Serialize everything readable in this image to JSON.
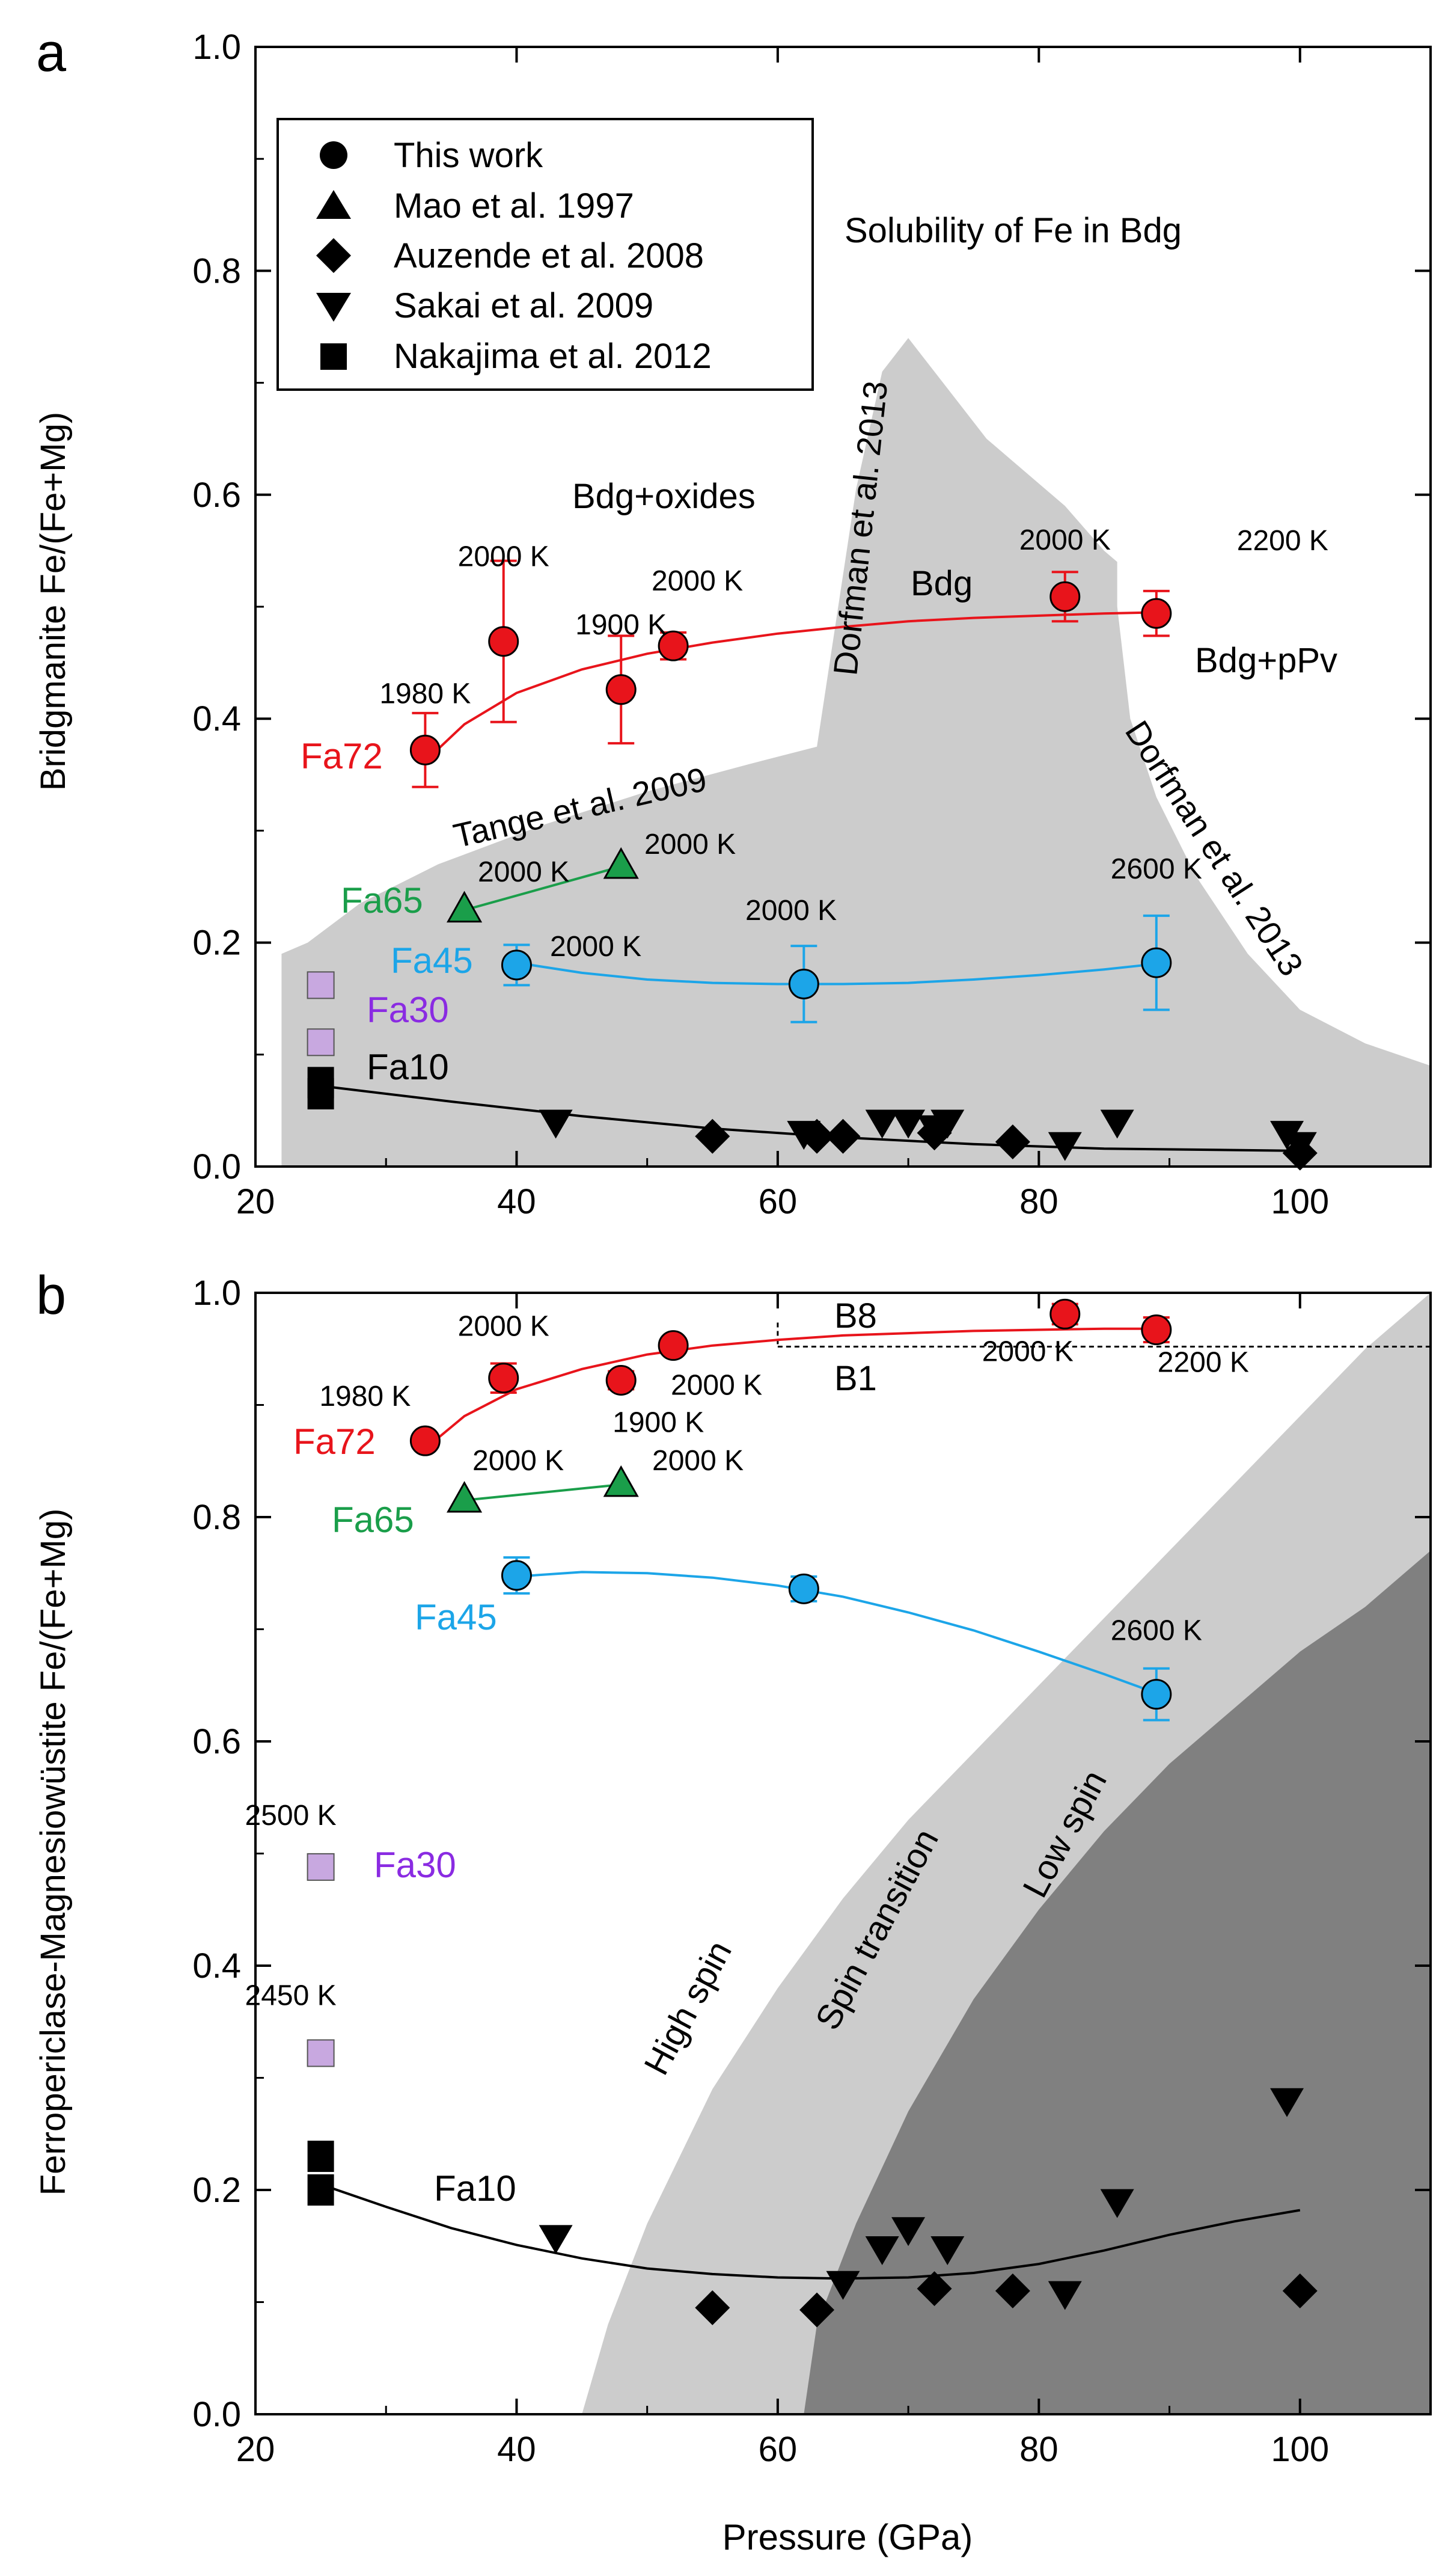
{
  "chart_data": [
    {
      "panel_label": "a",
      "type": "scatter",
      "xlabel": "",
      "ylabel": "Bridgmanite Fe/(Fe+Mg)",
      "xlim": [
        20,
        110
      ],
      "ylim": [
        0,
        1.0
      ],
      "xticks": [
        "20",
        "40",
        "60",
        "80",
        "100"
      ],
      "yticks": [
        "0.0",
        "0.2",
        "0.4",
        "0.6",
        "0.8",
        "1.0"
      ],
      "regions": [
        {
          "name": "Solubility of Fe in Bdg",
          "color": "#cccccc",
          "boundary": [
            [
              22,
              0
            ],
            [
              22,
              0.19
            ],
            [
              24,
              0.2
            ],
            [
              28,
              0.235
            ],
            [
              34,
              0.27
            ],
            [
              42,
              0.305
            ],
            [
              50,
              0.335
            ],
            [
              58,
              0.36
            ],
            [
              63,
              0.375
            ],
            [
              66,
              0.605
            ],
            [
              68,
              0.71
            ],
            [
              70,
              0.74
            ],
            [
              76,
              0.65
            ],
            [
              82,
              0.59
            ],
            [
              85,
              0.55
            ],
            [
              86,
              0.54
            ],
            [
              86,
              0.5
            ],
            [
              87,
              0.4
            ],
            [
              89,
              0.33
            ],
            [
              92,
              0.26
            ],
            [
              96,
              0.19
            ],
            [
              100,
              0.14
            ],
            [
              105,
              0.11
            ],
            [
              110,
              0.09
            ],
            [
              110,
              0
            ]
          ]
        }
      ],
      "legend": {
        "placement": "top-left",
        "entries": [
          {
            "marker": "circle",
            "label": "This work"
          },
          {
            "marker": "triangle-up",
            "label": "Mao et al. 1997"
          },
          {
            "marker": "diamond",
            "label": "Auzende et al. 2008"
          },
          {
            "marker": "triangle-down",
            "label": "Sakai et al. 2009"
          },
          {
            "marker": "square",
            "label": "Nakajima et al. 2012"
          }
        ]
      },
      "series": [
        {
          "name": "Fa72",
          "color": "#e8141b",
          "marker": "circle",
          "x": [
            33,
            39,
            48,
            52,
            82,
            89
          ],
          "y": [
            0.372,
            0.469,
            0.426,
            0.465,
            0.509,
            0.494
          ],
          "err": [
            0.033,
            0.072,
            0.048,
            0.012,
            0.022,
            0.02
          ],
          "temps": [
            "1980 K",
            "2000 K",
            "1900 K",
            "2000 K",
            "2000 K",
            "2200 K"
          ],
          "fit": [
            [
              33,
              0.362
            ],
            [
              36,
              0.395
            ],
            [
              40,
              0.423
            ],
            [
              45,
              0.444
            ],
            [
              50,
              0.458
            ],
            [
              55,
              0.468
            ],
            [
              60,
              0.476
            ],
            [
              65,
              0.482
            ],
            [
              70,
              0.487
            ],
            [
              75,
              0.49
            ],
            [
              80,
              0.492
            ],
            [
              85,
              0.494
            ],
            [
              89,
              0.495
            ]
          ]
        },
        {
          "name": "Fa65",
          "color": "#1a9e4a",
          "marker": "triangle-up",
          "x": [
            36,
            48
          ],
          "y": [
            0.229,
            0.268
          ],
          "temps": [
            "2000 K",
            "2000 K"
          ],
          "fit": [
            [
              36,
              0.229
            ],
            [
              48,
              0.268
            ]
          ]
        },
        {
          "name": "Fa45",
          "color": "#1ca5e8",
          "marker": "circle",
          "x": [
            40,
            62,
            89
          ],
          "y": [
            0.18,
            0.163,
            0.182
          ],
          "err": [
            0.018,
            0.034,
            0.042
          ],
          "temps": [
            "2000 K",
            "2000 K",
            "2600 K"
          ],
          "fit": [
            [
              40,
              0.182
            ],
            [
              45,
              0.173
            ],
            [
              50,
              0.167
            ],
            [
              55,
              0.164
            ],
            [
              60,
              0.163
            ],
            [
              65,
              0.163
            ],
            [
              70,
              0.164
            ],
            [
              75,
              0.167
            ],
            [
              80,
              0.171
            ],
            [
              85,
              0.176
            ],
            [
              89,
              0.181
            ]
          ]
        },
        {
          "name": "Fa30",
          "color": "#8a2be2",
          "marker": "square",
          "fill": "#c8a8e0",
          "x": [
            25,
            25
          ],
          "y": [
            0.162,
            0.111
          ]
        },
        {
          "name": "Fa10",
          "color": "#000000",
          "marker": "square",
          "x": [
            25,
            25
          ],
          "y": [
            0.075,
            0.065
          ],
          "fit": [
            [
              25,
              0.072
            ],
            [
              35,
              0.058
            ],
            [
              45,
              0.045
            ],
            [
              55,
              0.034
            ],
            [
              65,
              0.026
            ],
            [
              75,
              0.02
            ],
            [
              85,
              0.016
            ],
            [
              100,
              0.014
            ]
          ]
        },
        {
          "name": "Mao et al. 1997",
          "marker": "triangle-up",
          "x": [],
          "y": []
        },
        {
          "name": "Auzende et al. 2008",
          "marker": "diamond",
          "x": [
            55,
            63,
            65,
            72,
            78,
            100
          ],
          "y": [
            0.027,
            0.027,
            0.027,
            0.03,
            0.022,
            0.012
          ]
        },
        {
          "name": "Sakai et al. 2009",
          "marker": "triangle-down",
          "x": [
            43,
            62,
            68,
            70,
            72,
            73,
            82,
            86,
            99,
            100
          ],
          "y": [
            0.04,
            0.03,
            0.04,
            0.04,
            0.035,
            0.04,
            0.02,
            0.04,
            0.03,
            0.02
          ]
        }
      ],
      "annotations": [
        "Solubility of Fe in Bdg",
        "Bdg+oxides",
        "Bdg",
        "Bdg+pPv",
        "Tange et al. 2009",
        "Dorfman et al. 2013",
        "Dorfman et al. 2013",
        "2000 K",
        "2000 K",
        "2000 K",
        "2000 K"
      ]
    },
    {
      "panel_label": "b",
      "type": "scatter",
      "xlabel": "Pressure (GPa)",
      "ylabel": "Ferropericlase-Magnesiowüstite Fe/(Fe+Mg)",
      "xlim": [
        20,
        110
      ],
      "ylim": [
        0,
        1.0
      ],
      "xticks": [
        "20",
        "40",
        "60",
        "80",
        "100"
      ],
      "yticks": [
        "0.0",
        "0.2",
        "0.4",
        "0.6",
        "0.8",
        "1.0"
      ],
      "regions": [
        {
          "name": "Spin transition",
          "color": "#cccccc",
          "boundary": [
            [
              45,
              0
            ],
            [
              47,
              0.08
            ],
            [
              50,
              0.17
            ],
            [
              55,
              0.29
            ],
            [
              60,
              0.38
            ],
            [
              65,
              0.46
            ],
            [
              70,
              0.53
            ],
            [
              75,
              0.59
            ],
            [
              80,
              0.65
            ],
            [
              85,
              0.71
            ],
            [
              90,
              0.77
            ],
            [
              95,
              0.83
            ],
            [
              100,
              0.89
            ],
            [
              105,
              0.95
            ],
            [
              110,
              1.0
            ],
            [
              110,
              0
            ]
          ]
        },
        {
          "name": "Low spin",
          "color": "#808080",
          "boundary": [
            [
              62,
              0
            ],
            [
              63,
              0.08
            ],
            [
              66,
              0.17
            ],
            [
              70,
              0.27
            ],
            [
              75,
              0.37
            ],
            [
              80,
              0.45
            ],
            [
              85,
              0.52
            ],
            [
              90,
              0.58
            ],
            [
              95,
              0.63
            ],
            [
              100,
              0.68
            ],
            [
              105,
              0.72
            ],
            [
              110,
              0.77
            ],
            [
              110,
              0
            ]
          ]
        }
      ],
      "phase_boundary": {
        "y": 0.952,
        "x": [
          60,
          110
        ],
        "labels": [
          "B8",
          "B1"
        ]
      },
      "series": [
        {
          "name": "Fa72",
          "color": "#e8141b",
          "marker": "circle",
          "x": [
            33,
            39,
            48,
            52,
            82,
            89
          ],
          "y": [
            0.868,
            0.924,
            0.922,
            0.953,
            0.981,
            0.967
          ],
          "err": [
            0.005,
            0.013,
            0.008,
            0.006,
            0.009,
            0.011
          ],
          "temps": [
            "1980 K",
            "2000 K",
            "1900 K",
            "2000 K",
            "2000 K",
            "2200 K"
          ],
          "fit": [
            [
              33,
              0.861
            ],
            [
              36,
              0.89
            ],
            [
              40,
              0.914
            ],
            [
              45,
              0.932
            ],
            [
              50,
              0.945
            ],
            [
              55,
              0.953
            ],
            [
              60,
              0.958
            ],
            [
              65,
              0.962
            ],
            [
              70,
              0.964
            ],
            [
              75,
              0.966
            ],
            [
              80,
              0.967
            ],
            [
              85,
              0.968
            ],
            [
              89,
              0.968
            ]
          ]
        },
        {
          "name": "Fa65",
          "color": "#1a9e4a",
          "marker": "triangle-up",
          "x": [
            36,
            48
          ],
          "y": [
            0.815,
            0.829
          ],
          "temps": [
            "2000 K",
            "2000 K"
          ],
          "fit": [
            [
              36,
              0.815
            ],
            [
              48,
              0.829
            ]
          ]
        },
        {
          "name": "Fa45",
          "color": "#1ca5e8",
          "marker": "circle",
          "x": [
            40,
            62,
            89
          ],
          "y": [
            0.748,
            0.736,
            0.642
          ],
          "err": [
            0.016,
            0.011,
            0.023
          ],
          "temps": [
            "2000 K",
            "2000 K",
            "2600 K"
          ],
          "fit": [
            [
              40,
              0.747
            ],
            [
              45,
              0.751
            ],
            [
              50,
              0.75
            ],
            [
              55,
              0.746
            ],
            [
              60,
              0.739
            ],
            [
              65,
              0.729
            ],
            [
              70,
              0.715
            ],
            [
              75,
              0.699
            ],
            [
              80,
              0.68
            ],
            [
              85,
              0.66
            ],
            [
              89,
              0.643
            ]
          ]
        },
        {
          "name": "Fa30",
          "color": "#8a2be2",
          "marker": "square",
          "fill": "#c8a8e0",
          "x": [
            25,
            25
          ],
          "y": [
            0.488,
            0.322
          ],
          "temps": [
            "2500 K",
            "2450 K"
          ]
        },
        {
          "name": "Fa10",
          "color": "#000000",
          "marker": "square",
          "x": [
            25,
            25
          ],
          "y": [
            0.23,
            0.2
          ],
          "fit": [
            [
              25,
              0.205
            ],
            [
              30,
              0.185
            ],
            [
              35,
              0.166
            ],
            [
              40,
              0.151
            ],
            [
              45,
              0.139
            ],
            [
              50,
              0.13
            ],
            [
              55,
              0.125
            ],
            [
              60,
              0.122
            ],
            [
              65,
              0.121
            ],
            [
              70,
              0.122
            ],
            [
              75,
              0.126
            ],
            [
              80,
              0.134
            ],
            [
              85,
              0.146
            ],
            [
              90,
              0.16
            ],
            [
              95,
              0.172
            ],
            [
              100,
              0.182
            ]
          ]
        },
        {
          "name": "Auzende et al. 2008",
          "marker": "diamond",
          "x": [
            55,
            63,
            72,
            78,
            100
          ],
          "y": [
            0.095,
            0.093,
            0.112,
            0.11,
            0.11
          ]
        },
        {
          "name": "Sakai et al. 2009",
          "marker": "triangle-down",
          "x": [
            43,
            65,
            68,
            70,
            73,
            82,
            86,
            99
          ],
          "y": [
            0.158,
            0.117,
            0.148,
            0.165,
            0.148,
            0.108,
            0.19,
            0.28
          ]
        }
      ],
      "annotations": [
        "High spin",
        "Spin transition",
        "Low spin",
        "2000 K",
        "2000 K"
      ]
    }
  ]
}
